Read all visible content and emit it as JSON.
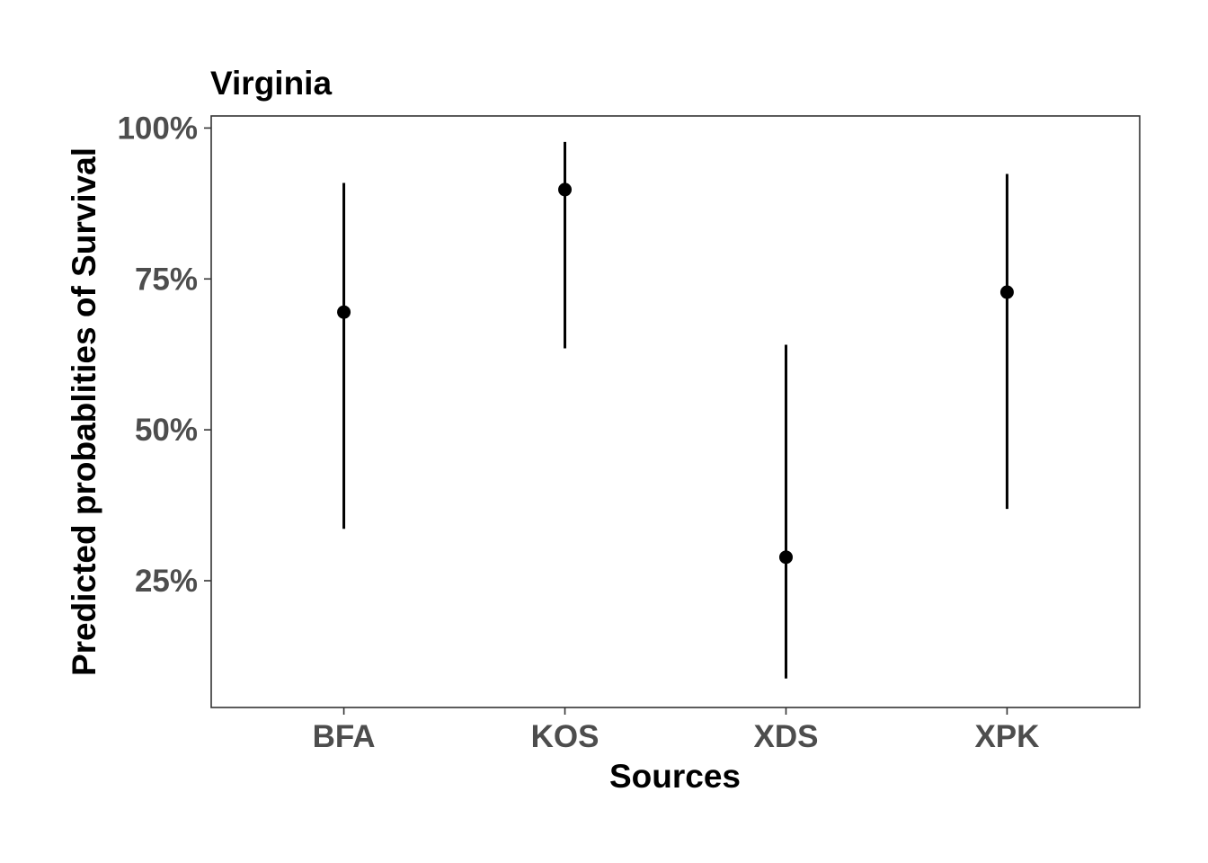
{
  "chart_data": {
    "type": "scatter",
    "title": "Virginia",
    "xlabel": "Sources",
    "ylabel": "Predicted probablities of Survival",
    "categories": [
      "BFA",
      "KOS",
      "XDS",
      "XPK"
    ],
    "values": [
      0.695,
      0.898,
      0.289,
      0.728
    ],
    "lower": [
      0.336,
      0.635,
      0.088,
      0.369
    ],
    "upper": [
      0.909,
      0.977,
      0.641,
      0.924
    ],
    "ylim": [
      0.04,
      1.02
    ],
    "yticks": [
      0.25,
      0.5,
      0.75,
      1.0
    ],
    "ytick_labels": [
      "25%",
      "50%",
      "75%",
      "100%"
    ],
    "grid": false,
    "colors": {
      "mark": "#000000",
      "axis_text": "#4d4d4d",
      "frame": "#333333"
    }
  }
}
